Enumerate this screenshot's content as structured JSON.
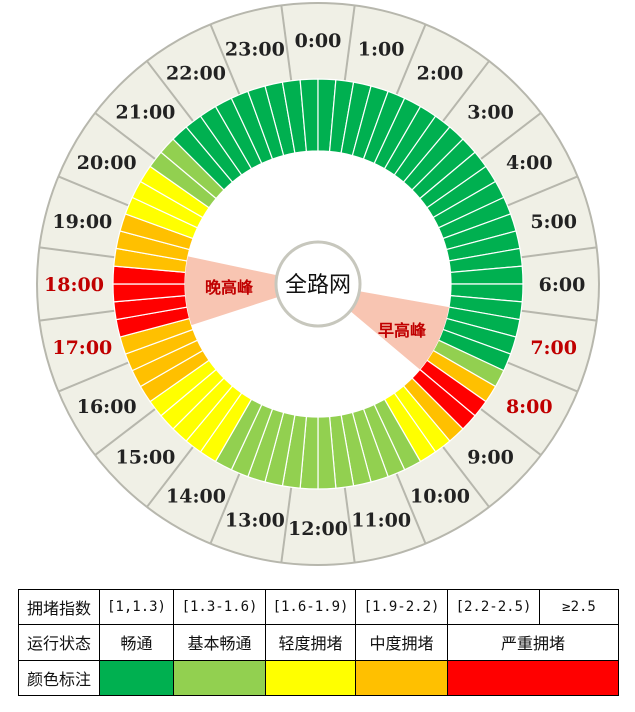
{
  "title": "全路网",
  "peaks": {
    "evening": "晚高峰",
    "morning": "早高峰"
  },
  "colors": {
    "smooth": "#00b050",
    "basic": "#92d050",
    "light": "#ffff00",
    "moderate": "#ffc000",
    "severe": "#ff0000",
    "ring_fill": "#f0f0e6",
    "ring_stroke": "#b7b7ad",
    "peak_fill": "#f8c5b2",
    "peak_hour_text": "#c00000"
  },
  "hours": [
    {
      "label": "0:00",
      "peak": false
    },
    {
      "label": "1:00",
      "peak": false
    },
    {
      "label": "2:00",
      "peak": false
    },
    {
      "label": "3:00",
      "peak": false
    },
    {
      "label": "4:00",
      "peak": false
    },
    {
      "label": "5:00",
      "peak": false
    },
    {
      "label": "6:00",
      "peak": false
    },
    {
      "label": "7:00",
      "peak": true
    },
    {
      "label": "8:00",
      "peak": true
    },
    {
      "label": "9:00",
      "peak": false
    },
    {
      "label": "10:00",
      "peak": false
    },
    {
      "label": "11:00",
      "peak": false
    },
    {
      "label": "12:00",
      "peak": false
    },
    {
      "label": "13:00",
      "peak": false
    },
    {
      "label": "14:00",
      "peak": false
    },
    {
      "label": "15:00",
      "peak": false
    },
    {
      "label": "16:00",
      "peak": false
    },
    {
      "label": "17:00",
      "peak": true
    },
    {
      "label": "18:00",
      "peak": true
    },
    {
      "label": "19:00",
      "peak": false
    },
    {
      "label": "20:00",
      "peak": false
    },
    {
      "label": "21:00",
      "peak": false
    },
    {
      "label": "22:00",
      "peak": false
    },
    {
      "label": "23:00",
      "peak": false
    }
  ],
  "segments": [
    "smooth",
    "smooth",
    "smooth",
    "smooth",
    "smooth",
    "smooth",
    "smooth",
    "smooth",
    "smooth",
    "smooth",
    "smooth",
    "smooth",
    "smooth",
    "smooth",
    "smooth",
    "smooth",
    "smooth",
    "smooth",
    "smooth",
    "smooth",
    "smooth",
    "smooth",
    "smooth",
    "smooth",
    "smooth",
    "smooth",
    "basic",
    "moderate",
    "severe",
    "severe",
    "moderate",
    "light",
    "light",
    "basic",
    "basic",
    "basic",
    "basic",
    "basic",
    "basic",
    "basic",
    "basic",
    "basic",
    "basic",
    "basic",
    "basic",
    "light",
    "light",
    "light",
    "light",
    "light",
    "moderate",
    "moderate",
    "moderate",
    "moderate",
    "severe",
    "severe",
    "severe",
    "severe",
    "moderate",
    "moderate",
    "moderate",
    "light",
    "light",
    "light",
    "basic",
    "basic",
    "smooth",
    "smooth",
    "smooth",
    "smooth",
    "smooth",
    "smooth"
  ],
  "legend": {
    "row1": {
      "header": "拥堵指数",
      "ranges": [
        "[1,1.3)",
        "[1.3-1.6)",
        "[1.6-1.9)",
        "[1.9-2.2)",
        "[2.2-2.5)",
        "≥2.5"
      ]
    },
    "row2": {
      "header": "运行状态",
      "states": [
        "畅通",
        "基本畅通",
        "轻度拥堵",
        "中度拥堵",
        "严重拥堵"
      ]
    },
    "row3": {
      "header": "颜色标注",
      "swatches": [
        "smooth",
        "basic",
        "light",
        "moderate",
        "severe"
      ]
    }
  }
}
